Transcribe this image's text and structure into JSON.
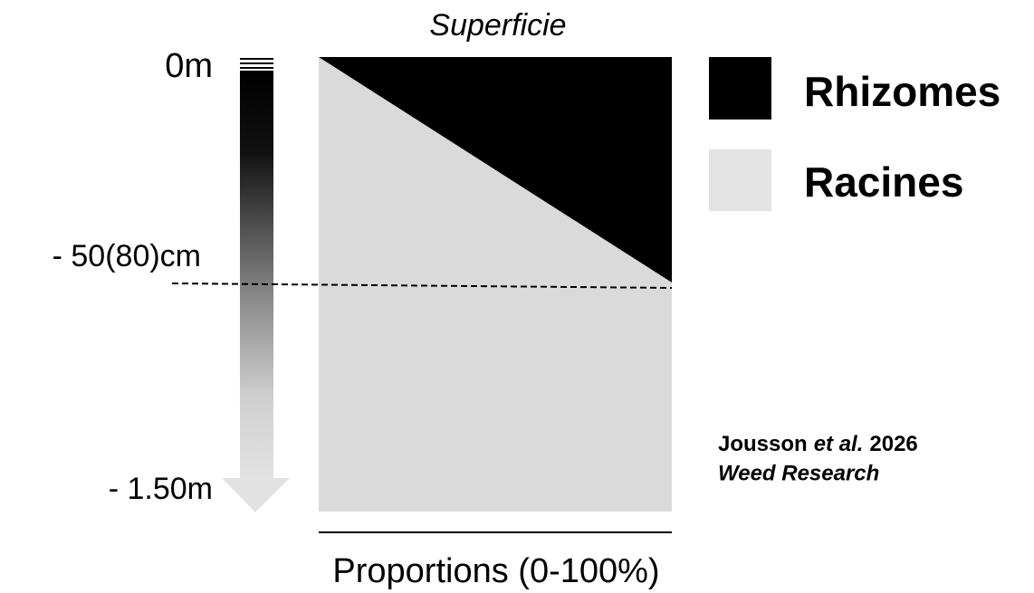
{
  "header": {
    "title": "Superficie"
  },
  "depth_labels": {
    "top": "0m",
    "middle": "- 50(80)cm",
    "bottom": "- 1.50m"
  },
  "legend": [
    {
      "label": "Rhizomes",
      "color": "#000000"
    },
    {
      "label": "Racines",
      "color": "#dadada"
    }
  ],
  "x_axis": {
    "label": "Proportions (0-100%)"
  },
  "citation": {
    "authors": "Jousson",
    "etal": "et al.",
    "year": "2026",
    "journal": "Weed Research"
  }
}
